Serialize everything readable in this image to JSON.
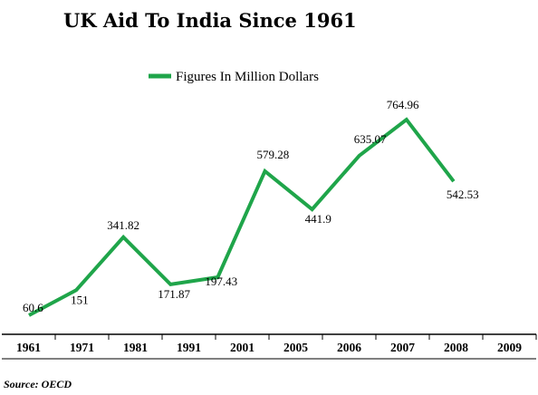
{
  "chart_data": {
    "type": "line",
    "title": "UK Aid To India Since 1961",
    "categories": [
      "1961",
      "1971",
      "1981",
      "1991",
      "2001",
      "2005",
      "2006",
      "2007",
      "2008",
      "2009"
    ],
    "series": [
      {
        "name": "Figures In Million Dollars",
        "values": [
          60.6,
          151,
          341.82,
          171.87,
          197.43,
          579.28,
          441.9,
          635.07,
          764.96,
          542.53
        ],
        "labels": [
          "60.6",
          "151",
          "341.82",
          "171.87",
          "197.43",
          "579.28",
          "441.9",
          "635.07",
          "764.96",
          "542.53"
        ],
        "color": "#1fa54a"
      }
    ],
    "xlabel": "",
    "ylabel": "",
    "grid": false,
    "legend": "top-center",
    "source": "Source: OECD"
  }
}
